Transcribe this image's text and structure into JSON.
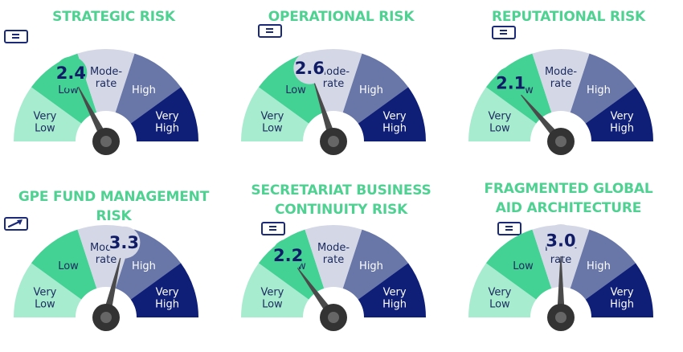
{
  "chart_data": {
    "type": "gauge",
    "scale": {
      "min": 1,
      "max": 5
    },
    "segments": [
      {
        "label_lines": [
          "Very",
          "Low"
        ],
        "color": "#a8ecd0",
        "text_color": "#1b2a5e"
      },
      {
        "label_lines": [
          "Low"
        ],
        "color": "#43d194",
        "text_color": "#1b2a5e"
      },
      {
        "label_lines": [
          "Mode-",
          "rate"
        ],
        "color": "#d3d7e6",
        "text_color": "#1b2a5e"
      },
      {
        "label_lines": [
          "High"
        ],
        "color": "#6876a8",
        "text_color": "#ffffff"
      },
      {
        "label_lines": [
          "Very",
          "High"
        ],
        "color": "#0f1f78",
        "text_color": "#ffffff"
      }
    ],
    "gauges": [
      {
        "title_lines": [
          "STRATEGIC RISK"
        ],
        "value": 2.4,
        "score": "2.4",
        "trend": "stable",
        "trend_symbol": "="
      },
      {
        "title_lines": [
          "OPERATIONAL RISK"
        ],
        "value": 2.6,
        "score": "2.6",
        "trend": "stable",
        "trend_symbol": "="
      },
      {
        "title_lines": [
          "REPUTATIONAL RISK"
        ],
        "value": 2.1,
        "score": "2.1",
        "trend": "stable",
        "trend_symbol": "="
      },
      {
        "title_lines": [
          "GPE FUND MANAGEMENT RISK"
        ],
        "value": 3.3,
        "score": "3.3",
        "trend": "increasing",
        "trend_symbol": "arrow-up-right"
      },
      {
        "title_lines": [
          "SECRETARIAT BUSINESS",
          "CONTINUITY RISK"
        ],
        "value": 2.2,
        "score": "2.2",
        "trend": "stable",
        "trend_symbol": "="
      },
      {
        "title_lines": [
          "FRAGMENTED GLOBAL",
          "AID ARCHITECTURE"
        ],
        "value": 3.0,
        "score": "3.0",
        "trend": "stable",
        "trend_symbol": "="
      }
    ]
  },
  "colors": {
    "title": "#4fd192",
    "trend_icon": "#1b2a78",
    "needle": "#4a4a4a",
    "hub_outer": "#333333",
    "hub_inner": "#666666",
    "badge_fill_low": "#43d194",
    "badge_fill_moderate": "#d3d7e6",
    "badge_text": "#101c66"
  }
}
